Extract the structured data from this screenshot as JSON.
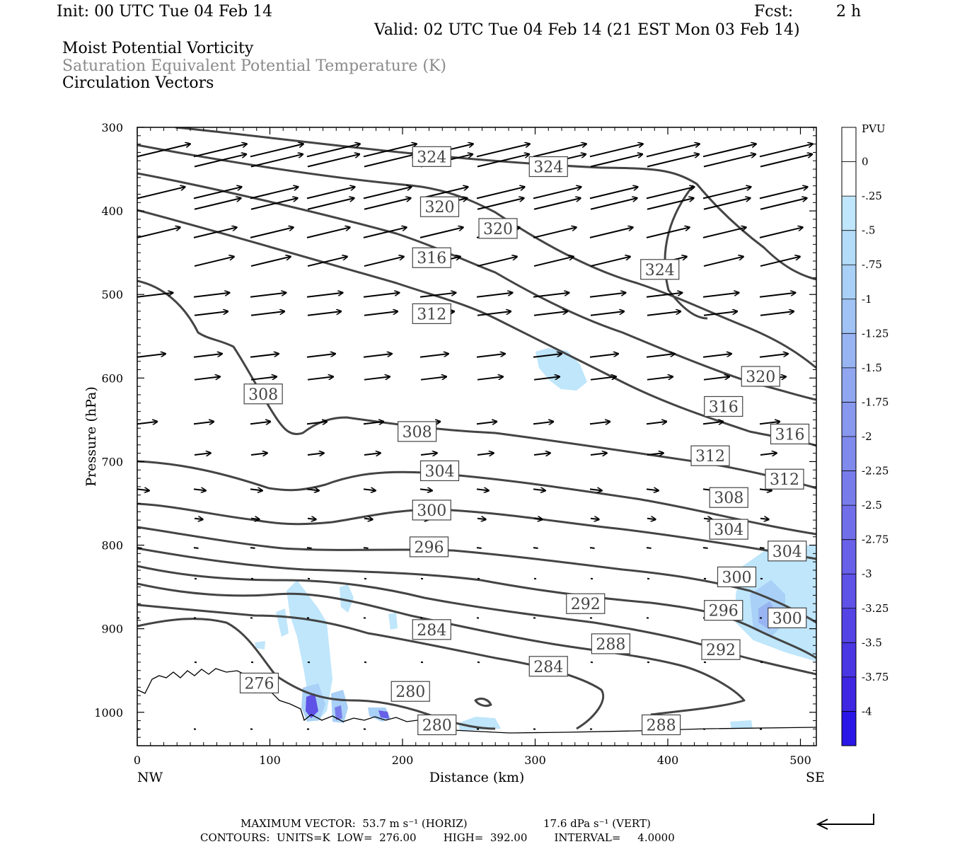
{
  "header": {
    "init": "Init: 00 UTC Tue 04 Feb 14",
    "fcst_label": "Fcst:",
    "fcst_value": "2 h",
    "valid": "Valid: 02 UTC Tue 04 Feb 14 (21 EST Mon 03 Feb 14)",
    "field1": "Moist Potential Vorticity",
    "field2": "Saturation Equivalent Potential Temperature (K)",
    "field3": "Circulation Vectors"
  },
  "chart_data": {
    "type": "contour",
    "xlabel": "Distance (km)",
    "ylabel": "Pressure (hPa)",
    "xlim": [
      0,
      512
    ],
    "ylim": [
      300,
      1040
    ],
    "x_ticks": [
      "0",
      "100",
      "200",
      "300",
      "400",
      "500"
    ],
    "y_ticks": [
      "300",
      "400",
      "500",
      "600",
      "700",
      "800",
      "900",
      "1000"
    ],
    "x_end_labels": {
      "left": "NW",
      "right": "SE"
    },
    "contour_labels": [
      {
        "value": "324",
        "x": 222,
        "p": 335
      },
      {
        "value": "324",
        "x": 310,
        "p": 347
      },
      {
        "value": "324",
        "x": 394,
        "p": 470
      },
      {
        "value": "320",
        "x": 228,
        "p": 395
      },
      {
        "value": "320",
        "x": 272,
        "p": 421
      },
      {
        "value": "320",
        "x": 470,
        "p": 598
      },
      {
        "value": "316",
        "x": 222,
        "p": 456
      },
      {
        "value": "316",
        "x": 442,
        "p": 634
      },
      {
        "value": "316",
        "x": 492,
        "p": 667
      },
      {
        "value": "312",
        "x": 222,
        "p": 523
      },
      {
        "value": "312",
        "x": 432,
        "p": 693
      },
      {
        "value": "312",
        "x": 488,
        "p": 721
      },
      {
        "value": "308",
        "x": 95,
        "p": 619
      },
      {
        "value": "308",
        "x": 211,
        "p": 664
      },
      {
        "value": "308",
        "x": 446,
        "p": 743
      },
      {
        "value": "304",
        "x": 228,
        "p": 711
      },
      {
        "value": "304",
        "x": 446,
        "p": 781
      },
      {
        "value": "304",
        "x": 490,
        "p": 807
      },
      {
        "value": "300",
        "x": 222,
        "p": 758
      },
      {
        "value": "300",
        "x": 452,
        "p": 838
      },
      {
        "value": "300",
        "x": 490,
        "p": 887
      },
      {
        "value": "296",
        "x": 220,
        "p": 802
      },
      {
        "value": "296",
        "x": 442,
        "p": 878
      },
      {
        "value": "292",
        "x": 338,
        "p": 870
      },
      {
        "value": "292",
        "x": 440,
        "p": 925
      },
      {
        "value": "288",
        "x": 357,
        "p": 918
      },
      {
        "value": "288",
        "x": 395,
        "p": 1015
      },
      {
        "value": "284",
        "x": 222,
        "p": 901
      },
      {
        "value": "284",
        "x": 310,
        "p": 945
      },
      {
        "value": "280",
        "x": 206,
        "p": 975
      },
      {
        "value": "280",
        "x": 226,
        "p": 1015
      },
      {
        "value": "276",
        "x": 92,
        "p": 965
      }
    ],
    "colorbar": {
      "title": "PVU",
      "labels": [
        "0",
        "-.25",
        "-.5",
        "-.75",
        "-1",
        "-1.25",
        "-1.5",
        "-1.75",
        "-2",
        "-2.25",
        "-2.5",
        "-2.75",
        "-3",
        "-3.25",
        "-3.5",
        "-3.75",
        "-4"
      ],
      "colors": [
        "#ffffff",
        "#ffffff",
        "#bfe6fb",
        "#b3dcf8",
        "#a9d0f6",
        "#a0c2f4",
        "#98b4f2",
        "#90a6f0",
        "#8898ee",
        "#808aec",
        "#787ceb",
        "#706ee9",
        "#6860e8",
        "#5f52e6",
        "#5544e5",
        "#4b36e4",
        "#3f26e3",
        "#2a16e6"
      ]
    }
  },
  "footer": {
    "max_vector": "MAXIMUM VECTOR:  53.7 m s⁻¹ (HORIZ)",
    "vert": "17.6 dPa s⁻¹ (VERT)",
    "contours": "CONTOURS:  UNITS=K  LOW=  276.00        HIGH=  392.00        INTERVAL=     4.0000"
  }
}
